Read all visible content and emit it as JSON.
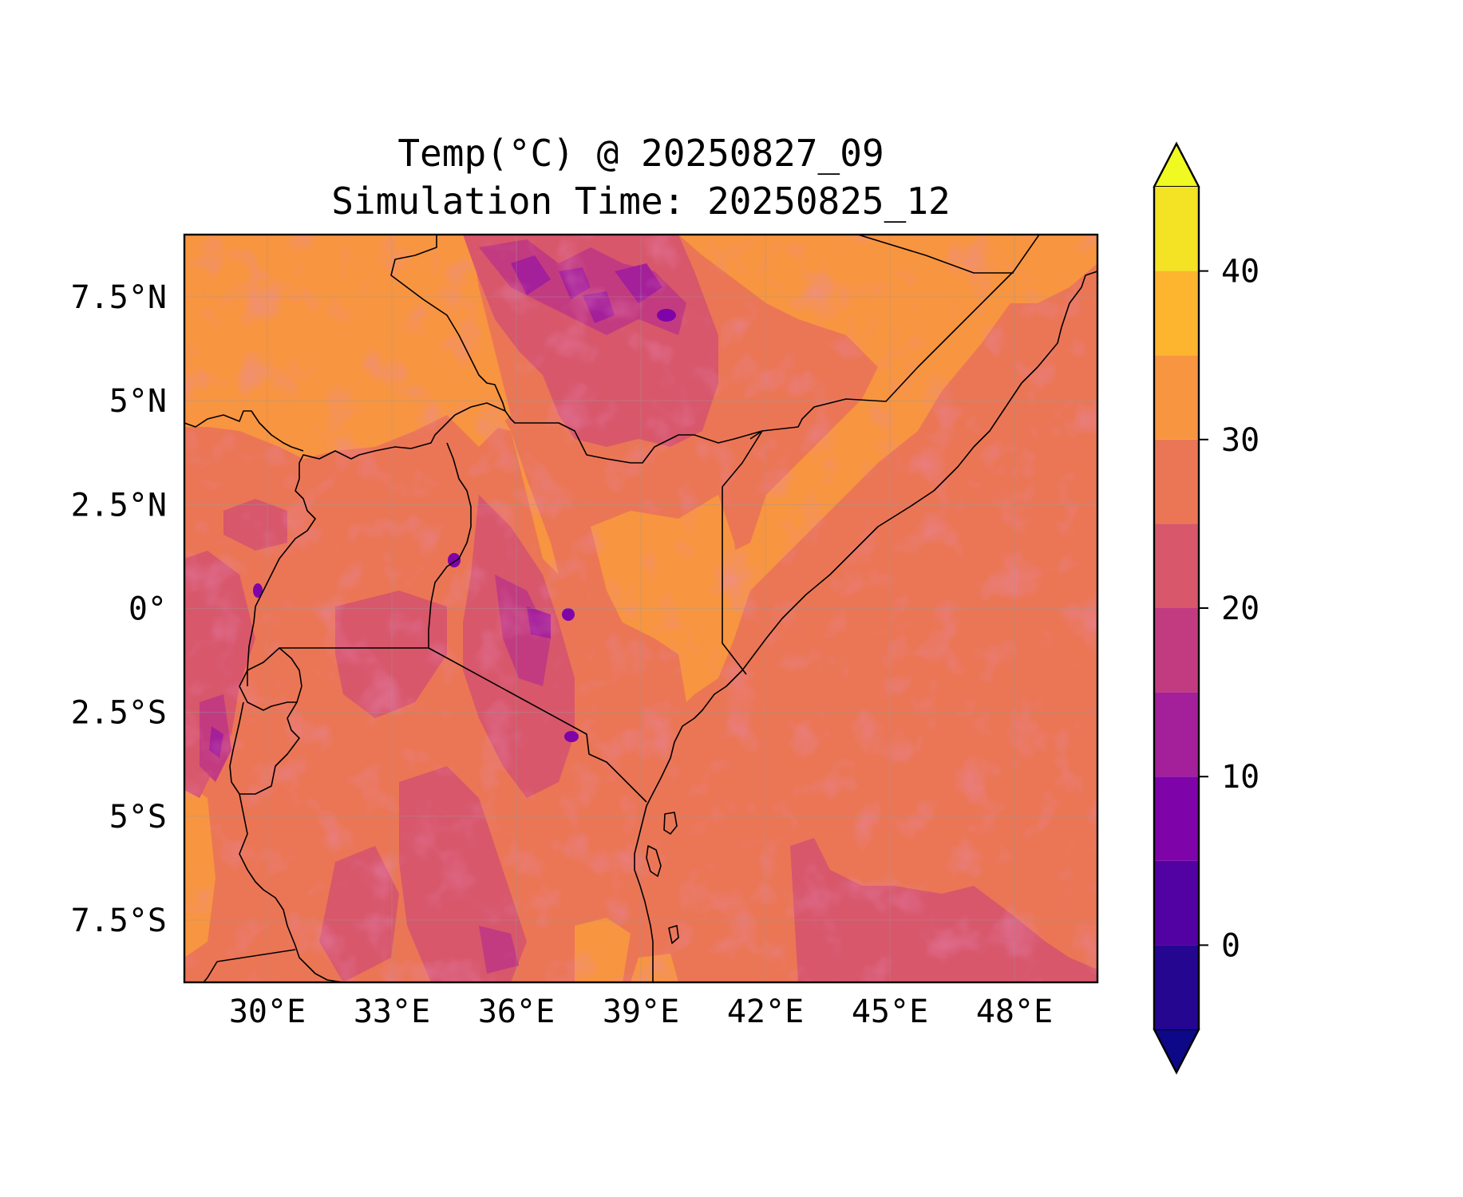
{
  "title": {
    "line1": "Temp(°C) @ 20250827_09",
    "line2": "Simulation Time: 20250825_12"
  },
  "map": {
    "lon_range": [
      28,
      50
    ],
    "lat_range": [
      -9,
      9
    ],
    "x_ticks": [
      {
        "value": 30,
        "label": "30°E"
      },
      {
        "value": 33,
        "label": "33°E"
      },
      {
        "value": 36,
        "label": "36°E"
      },
      {
        "value": 39,
        "label": "39°E"
      },
      {
        "value": 42,
        "label": "42°E"
      },
      {
        "value": 45,
        "label": "45°E"
      },
      {
        "value": 48,
        "label": "48°E"
      }
    ],
    "y_ticks": [
      {
        "value": 7.5,
        "label": "7.5°N"
      },
      {
        "value": 5,
        "label": "5°N"
      },
      {
        "value": 2.5,
        "label": "2.5°N"
      },
      {
        "value": 0,
        "label": "0°"
      },
      {
        "value": -2.5,
        "label": "2.5°S"
      },
      {
        "value": -5,
        "label": "5°S"
      },
      {
        "value": -7.5,
        "label": "7.5°S"
      }
    ],
    "gridlines": true,
    "field": "temperature (°C), filled contours, plasma colormap"
  },
  "colorbar": {
    "range": [
      -5,
      45
    ],
    "levels": [
      {
        "from": -5,
        "to": 0,
        "color": "#240691"
      },
      {
        "from": 0,
        "to": 5,
        "color": "#5201a3"
      },
      {
        "from": 5,
        "to": 10,
        "color": "#7e03a8"
      },
      {
        "from": 10,
        "to": 15,
        "color": "#a41f9a"
      },
      {
        "from": 15,
        "to": 20,
        "color": "#c23b80"
      },
      {
        "from": 20,
        "to": 25,
        "color": "#d8576b"
      },
      {
        "from": 25,
        "to": 30,
        "color": "#eb7655"
      },
      {
        "from": 30,
        "to": 35,
        "color": "#f89540"
      },
      {
        "from": 35,
        "to": 40,
        "color": "#fdb42f"
      },
      {
        "from": 40,
        "to": 45,
        "color": "#f4e224"
      }
    ],
    "under_color": "#0d0887",
    "over_color": "#f0f921",
    "ticks": [
      {
        "value": 0,
        "label": "0"
      },
      {
        "value": 10,
        "label": "10"
      },
      {
        "value": 20,
        "label": "20"
      },
      {
        "value": 30,
        "label": "30"
      },
      {
        "value": 40,
        "label": "40"
      }
    ]
  }
}
